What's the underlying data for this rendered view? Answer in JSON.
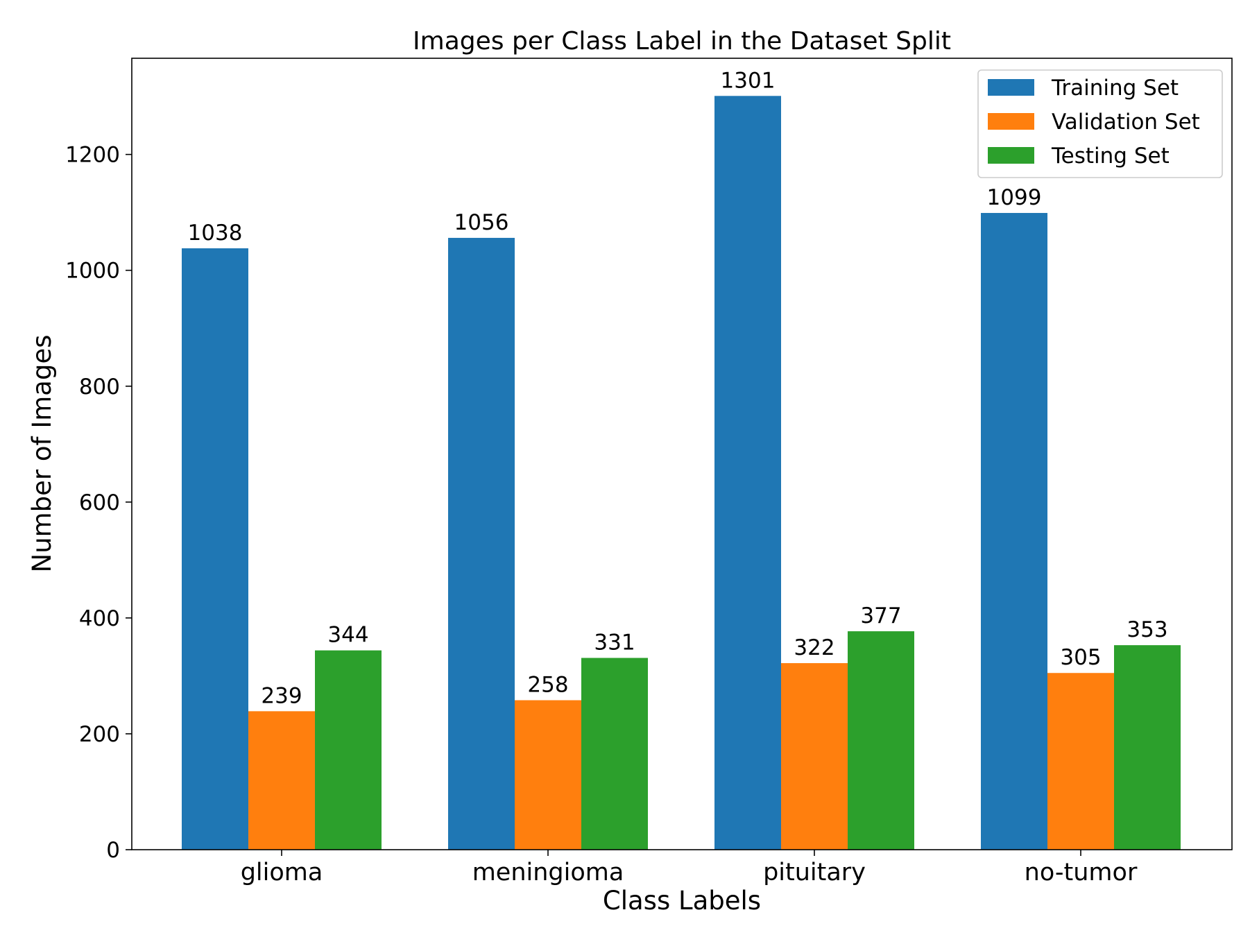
{
  "chart_data": {
    "type": "bar",
    "title": "Images per Class Label in the Dataset Split",
    "xlabel": "Class Labels",
    "ylabel": "Number of Images",
    "categories": [
      "glioma",
      "meningioma",
      "pituitary",
      "no-tumor"
    ],
    "series": [
      {
        "name": "Training Set",
        "values": [
          1038,
          1056,
          1301,
          1099
        ],
        "color": "#1f77b4"
      },
      {
        "name": "Validation Set",
        "values": [
          239,
          258,
          322,
          305
        ],
        "color": "#ff7f0e"
      },
      {
        "name": "Testing Set",
        "values": [
          344,
          331,
          377,
          353
        ],
        "color": "#2ca02c"
      }
    ],
    "ylim": [
      0,
      1366
    ],
    "yticks": [
      0,
      200,
      400,
      600,
      800,
      1000,
      1200
    ],
    "ytick_labels": [
      "0",
      "200",
      "400",
      "600",
      "800",
      "1000",
      "1200"
    ],
    "grid": false,
    "legend_position": "top-right",
    "data_labels": true
  }
}
